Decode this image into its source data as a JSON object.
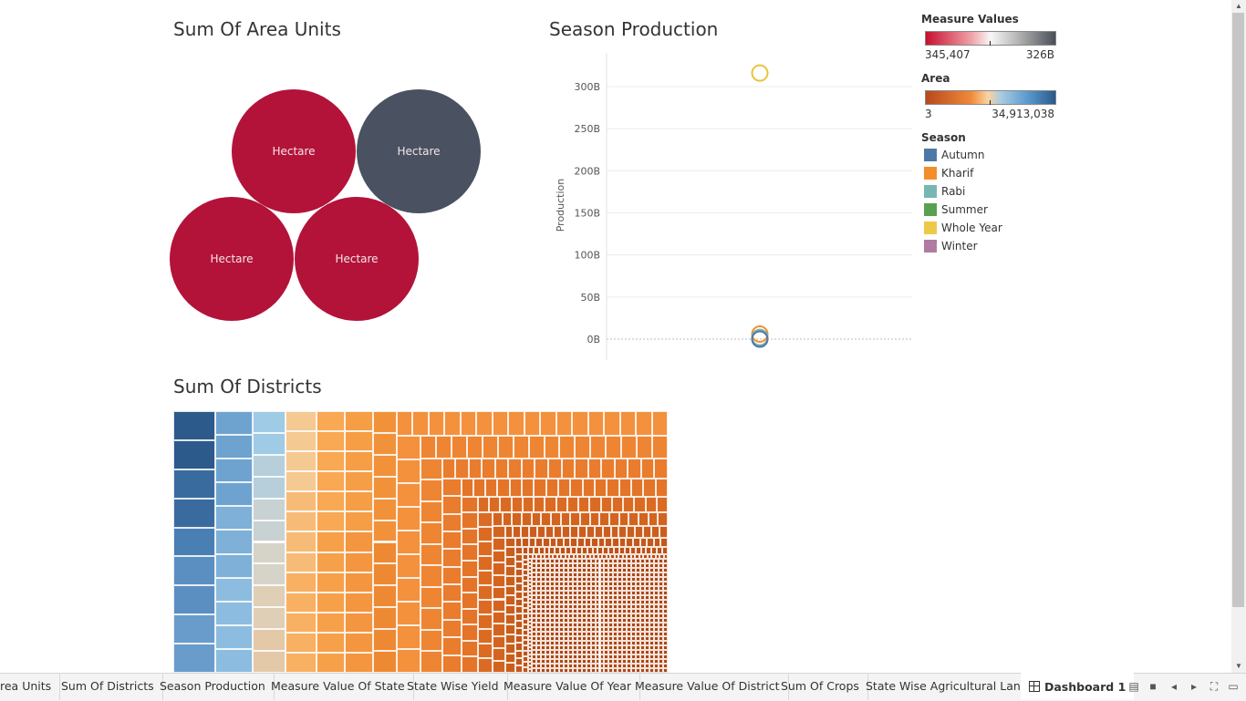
{
  "titles": {
    "area_units": "Sum Of Area Units",
    "season_production": "Season Production",
    "districts": "Sum Of Districts"
  },
  "bubbles": [
    {
      "label": "Hectare",
      "color": "#b31339"
    },
    {
      "label": "Hectare",
      "color": "#4a5160"
    },
    {
      "label": "Hectare",
      "color": "#b31339"
    },
    {
      "label": "Hectare",
      "color": "#b31339"
    }
  ],
  "chart_data": {
    "type": "scatter",
    "title": "Season Production",
    "ylabel": "Production",
    "xlabel": "",
    "ylim": [
      0,
      340
    ],
    "yticks": [
      "0B",
      "50B",
      "100B",
      "150B",
      "200B",
      "250B",
      "300B"
    ],
    "ytick_values": [
      0,
      50,
      100,
      150,
      200,
      250,
      300
    ],
    "series": [
      {
        "name": "Whole Year",
        "y": 316,
        "color": "#e6c53d"
      },
      {
        "name": "Kharif",
        "y": 6,
        "color": "#f28e2b"
      },
      {
        "name": "Rabi",
        "y": 2,
        "color": "#76b7b2"
      },
      {
        "name": "Autumn",
        "y": 0,
        "color": "#4e79a7"
      }
    ]
  },
  "legend": {
    "measure_values": {
      "title": "Measure Values",
      "min": "345,407",
      "max": "326B"
    },
    "area": {
      "title": "Area",
      "min": "3",
      "max": "34,913,038"
    },
    "season": {
      "title": "Season",
      "items": [
        {
          "label": "Autumn",
          "color": "#4e79a7"
        },
        {
          "label": "Kharif",
          "color": "#f28e2b"
        },
        {
          "label": "Rabi",
          "color": "#76b7b2"
        },
        {
          "label": "Summer",
          "color": "#59a14f"
        },
        {
          "label": "Whole Year",
          "color": "#edc948"
        },
        {
          "label": "Winter",
          "color": "#b07aa1"
        }
      ]
    }
  },
  "tabs": [
    {
      "label": "rea Units"
    },
    {
      "label": "Sum Of Districts"
    },
    {
      "label": "Season Production"
    },
    {
      "label": "Measure Value Of State"
    },
    {
      "label": "State Wise Yield"
    },
    {
      "label": "Measure Value Of Year"
    },
    {
      "label": "Measure Value Of District"
    },
    {
      "label": "Sum Of Crops"
    },
    {
      "label": "State Wise Agricultural Land"
    },
    {
      "label": "Dashboard 1"
    }
  ]
}
